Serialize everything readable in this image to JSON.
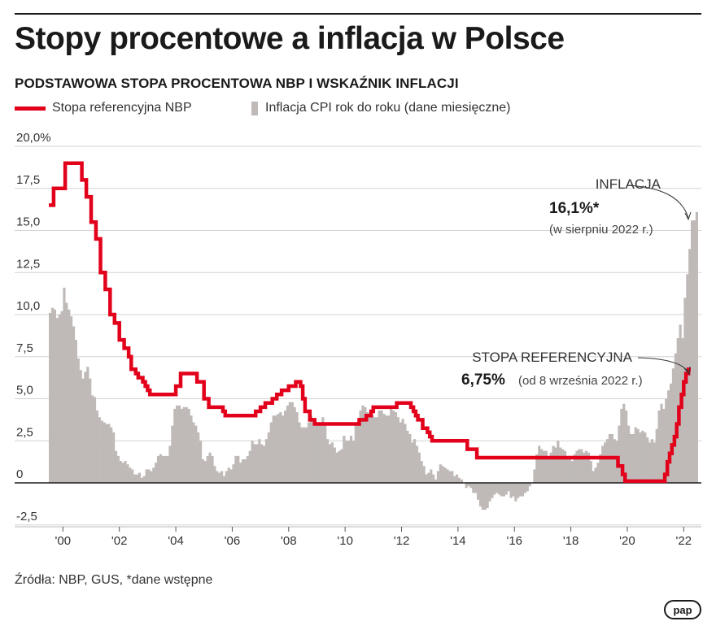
{
  "title": "Stopy procentowe a inflacja w Polsce",
  "subtitle": "PODSTAWOWA STOPA PROCENTOWA NBP I WSKAŹNIK INFLACJI",
  "legend": {
    "line_label": "Stopa referencyjna NBP",
    "bar_label": "Inflacja CPI rok do roku (dane miesięczne)"
  },
  "source": "Źródła: NBP, GUS, *dane wstępne",
  "logo": "pap",
  "colors": {
    "rate": "#e2001a",
    "inflation": "#bfbab8",
    "axis": "#1a1a1a"
  },
  "annotations": {
    "inflation_heading": "INFLACJA",
    "inflation_value": "16,1%*",
    "inflation_note": "(w sierpniu 2022 r.)",
    "rate_heading": "STOPA REFERENCYJNA",
    "rate_value": "6,75%",
    "rate_note": "(od 8 września 2022 r.)"
  },
  "chart_data": {
    "type": "bar",
    "x_range": [
      2000.0,
      2022.75
    ],
    "ylim": [
      -2.5,
      20
    ],
    "y_ticks": [
      {
        "value": 20,
        "label": "20,0%"
      },
      {
        "value": 17.5,
        "label": "17,5"
      },
      {
        "value": 15,
        "label": "15,0"
      },
      {
        "value": 12.5,
        "label": "12,5"
      },
      {
        "value": 10,
        "label": "10,0"
      },
      {
        "value": 7.5,
        "label": "7,5"
      },
      {
        "value": 5,
        "label": "5,0"
      },
      {
        "value": 2.5,
        "label": "2,5"
      },
      {
        "value": 0,
        "label": "0"
      },
      {
        "value": -2.5,
        "label": "-2,5"
      }
    ],
    "x_ticks": [
      {
        "value": 2000.5,
        "label": "'00"
      },
      {
        "value": 2002.5,
        "label": "'02"
      },
      {
        "value": 2004.5,
        "label": "'04"
      },
      {
        "value": 2006.5,
        "label": "'06"
      },
      {
        "value": 2008.5,
        "label": "'08"
      },
      {
        "value": 2010.5,
        "label": "'10"
      },
      {
        "value": 2012.5,
        "label": "'12"
      },
      {
        "value": 2014.5,
        "label": "'14"
      },
      {
        "value": 2016.5,
        "label": "'16"
      },
      {
        "value": 2018.5,
        "label": "'18"
      },
      {
        "value": 2020.5,
        "label": "'20"
      },
      {
        "value": 2022.5,
        "label": "'22"
      }
    ],
    "grid": "horizontal",
    "legend_position": "top-left",
    "series": [
      {
        "name": "Inflacja CPI rok do roku (dane miesięczne)",
        "type": "bar",
        "start": 2000.0,
        "step_months": 1,
        "values": [
          10.1,
          10.4,
          10.3,
          9.8,
          10.0,
          10.2,
          11.6,
          10.7,
          10.3,
          9.9,
          9.3,
          8.5,
          7.4,
          6.7,
          6.2,
          6.6,
          6.9,
          6.2,
          5.2,
          5.1,
          4.3,
          3.9,
          3.7,
          3.6,
          3.5,
          3.5,
          3.3,
          3.0,
          1.9,
          1.6,
          1.3,
          1.2,
          1.3,
          1.1,
          0.9,
          0.8,
          0.5,
          0.5,
          0.6,
          0.3,
          0.4,
          0.8,
          0.8,
          0.7,
          0.9,
          1.2,
          1.6,
          1.7,
          1.6,
          1.6,
          1.6,
          2.2,
          3.4,
          4.4,
          4.6,
          4.6,
          4.4,
          4.5,
          4.5,
          4.4,
          4.0,
          3.6,
          3.4,
          3.0,
          2.5,
          1.4,
          1.3,
          1.6,
          1.8,
          1.6,
          1.0,
          0.7,
          0.6,
          0.7,
          0.4,
          0.7,
          0.9,
          0.8,
          1.1,
          1.6,
          1.6,
          1.2,
          1.4,
          1.4,
          1.6,
          1.9,
          2.5,
          2.3,
          2.3,
          2.6,
          2.3,
          2.2,
          2.6,
          3.0,
          3.6,
          4.0,
          4.0,
          4.1,
          4.2,
          4.0,
          4.3,
          4.6,
          4.8,
          4.8,
          4.5,
          4.2,
          3.6,
          3.3,
          3.3,
          3.3,
          3.6,
          4.0,
          3.6,
          3.6,
          3.5,
          3.5,
          3.9,
          3.4,
          2.6,
          2.3,
          2.4,
          2.1,
          1.8,
          1.9,
          2.0,
          2.8,
          2.5,
          2.5,
          2.8,
          2.5,
          3.6,
          3.6,
          4.3,
          4.6,
          4.5,
          4.2,
          4.1,
          4.0,
          3.9,
          3.9,
          4.3,
          4.3,
          4.1,
          4.0,
          4.0,
          4.4,
          4.3,
          4.2,
          3.9,
          3.6,
          3.8,
          3.5,
          3.1,
          2.9,
          2.4,
          2.6,
          2.2,
          1.8,
          1.3,
          1.0,
          0.5,
          0.6,
          0.8,
          0.5,
          0.2,
          0.7,
          1.1,
          1.0,
          0.9,
          0.8,
          0.7,
          0.7,
          0.4,
          0.5,
          0.3,
          0.2,
          0.0,
          -0.3,
          -0.2,
          -0.3,
          -0.6,
          -0.6,
          -1.0,
          -1.4,
          -1.6,
          -1.6,
          -1.5,
          -1.1,
          -0.9,
          -0.7,
          -0.6,
          -0.7,
          -0.8,
          -0.8,
          -0.7,
          -0.5,
          -0.9,
          -0.8,
          -1.1,
          -0.9,
          -0.8,
          -0.8,
          -0.6,
          -0.5,
          -0.2,
          0.0,
          0.8,
          1.7,
          2.2,
          2.0,
          1.9,
          1.9,
          1.5,
          1.8,
          2.2,
          2.1,
          2.5,
          2.1,
          2.0,
          1.9,
          1.5,
          1.6,
          1.3,
          1.7,
          1.9,
          2.0,
          2.0,
          1.8,
          1.9,
          1.8,
          1.3,
          0.7,
          0.9,
          1.2,
          1.7,
          2.2,
          2.4,
          2.6,
          2.9,
          2.9,
          2.6,
          2.5,
          3.4,
          4.4,
          4.7,
          4.3,
          3.4,
          2.9,
          2.9,
          3.3,
          3.2,
          3.0,
          3.1,
          3.0,
          2.7,
          2.4,
          2.6,
          2.4,
          3.2,
          4.3,
          4.7,
          4.4,
          5.0,
          5.5,
          5.9,
          6.8,
          7.7,
          8.6,
          9.4,
          8.6,
          11.0,
          12.4,
          13.9,
          15.6,
          15.6,
          16.1
        ]
      },
      {
        "name": "Stopa referencyjna NBP",
        "type": "step-line",
        "points": [
          [
            2000.0,
            16.5
          ],
          [
            2000.17,
            17.5
          ],
          [
            2000.58,
            19.0
          ],
          [
            2001.17,
            18.0
          ],
          [
            2001.33,
            17.0
          ],
          [
            2001.5,
            15.5
          ],
          [
            2001.67,
            14.5
          ],
          [
            2001.83,
            12.5
          ],
          [
            2002.0,
            11.5
          ],
          [
            2002.17,
            10.0
          ],
          [
            2002.33,
            9.5
          ],
          [
            2002.5,
            8.5
          ],
          [
            2002.67,
            8.0
          ],
          [
            2002.83,
            7.5
          ],
          [
            2002.92,
            6.75
          ],
          [
            2003.08,
            6.5
          ],
          [
            2003.17,
            6.25
          ],
          [
            2003.33,
            6.0
          ],
          [
            2003.42,
            5.75
          ],
          [
            2003.5,
            5.5
          ],
          [
            2003.58,
            5.25
          ],
          [
            2004.5,
            5.75
          ],
          [
            2004.67,
            6.5
          ],
          [
            2005.25,
            6.0
          ],
          [
            2005.5,
            5.0
          ],
          [
            2005.67,
            4.5
          ],
          [
            2006.17,
            4.25
          ],
          [
            2006.25,
            4.0
          ],
          [
            2007.33,
            4.25
          ],
          [
            2007.5,
            4.5
          ],
          [
            2007.67,
            4.75
          ],
          [
            2007.92,
            5.0
          ],
          [
            2008.08,
            5.25
          ],
          [
            2008.25,
            5.5
          ],
          [
            2008.5,
            5.75
          ],
          [
            2008.75,
            6.0
          ],
          [
            2008.92,
            5.75
          ],
          [
            2009.0,
            5.0
          ],
          [
            2009.08,
            4.25
          ],
          [
            2009.25,
            3.75
          ],
          [
            2009.42,
            3.5
          ],
          [
            2011.0,
            3.75
          ],
          [
            2011.25,
            4.0
          ],
          [
            2011.42,
            4.25
          ],
          [
            2011.5,
            4.5
          ],
          [
            2012.33,
            4.75
          ],
          [
            2012.83,
            4.5
          ],
          [
            2012.92,
            4.25
          ],
          [
            2013.0,
            4.0
          ],
          [
            2013.08,
            3.75
          ],
          [
            2013.25,
            3.25
          ],
          [
            2013.42,
            3.0
          ],
          [
            2013.5,
            2.75
          ],
          [
            2013.58,
            2.5
          ],
          [
            2014.83,
            2.0
          ],
          [
            2015.17,
            1.5
          ],
          [
            2020.17,
            1.0
          ],
          [
            2020.33,
            0.5
          ],
          [
            2020.42,
            0.1
          ],
          [
            2021.83,
            0.5
          ],
          [
            2021.92,
            1.25
          ],
          [
            2022.0,
            1.75
          ],
          [
            2022.08,
            2.25
          ],
          [
            2022.17,
            2.75
          ],
          [
            2022.25,
            3.5
          ],
          [
            2022.33,
            4.5
          ],
          [
            2022.42,
            5.25
          ],
          [
            2022.5,
            6.0
          ],
          [
            2022.58,
            6.5
          ],
          [
            2022.67,
            6.75
          ],
          [
            2022.75,
            6.75
          ]
        ]
      }
    ]
  }
}
